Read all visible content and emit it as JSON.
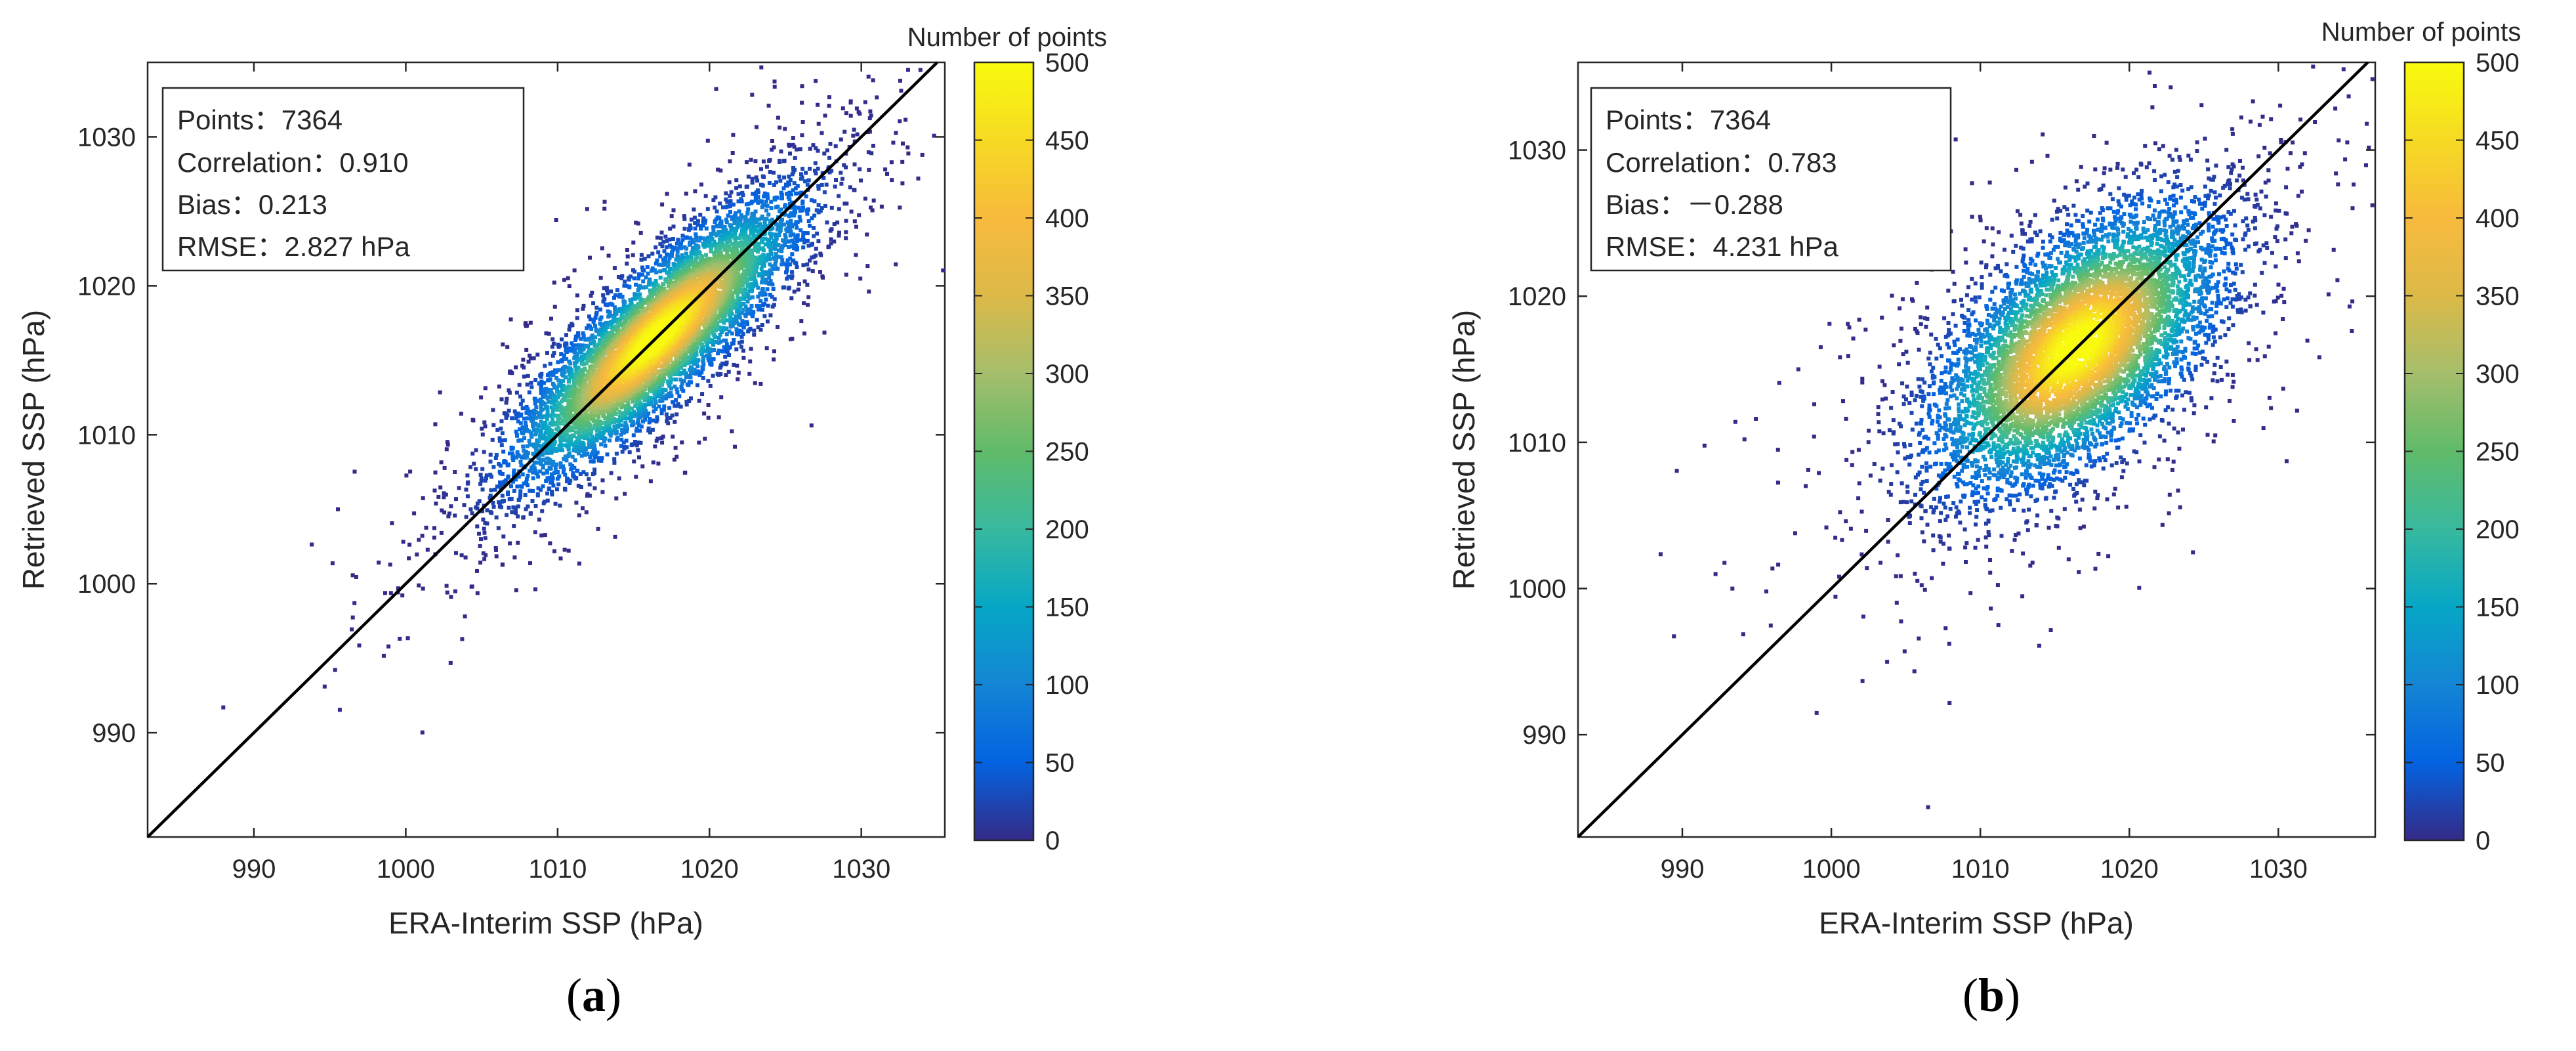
{
  "figure": {
    "caption_a": "a",
    "caption_b": "b"
  },
  "chart_data": [
    {
      "type": "scatter",
      "panel": "a",
      "xlabel": "ERA-Interim SSP (hPa)",
      "ylabel": "Retrieved SSP (hPa)",
      "xlim": [
        983,
        1035.5
      ],
      "ylim": [
        983,
        1035
      ],
      "xticks": [
        990,
        1000,
        1010,
        1020,
        1030
      ],
      "yticks": [
        990,
        1000,
        1010,
        1020,
        1030
      ],
      "reference_line": "1:1",
      "colorbar": {
        "label": "Number of points",
        "range": [
          0,
          500
        ],
        "ticks": [
          0,
          50,
          100,
          150,
          200,
          250,
          300,
          350,
          400,
          450,
          500
        ]
      },
      "stats": {
        "points": "Points：7364",
        "correlation": "Correlation：0.910",
        "bias": "Bias：0.213",
        "rmse": "RMSE：2.827 hPa"
      },
      "density": {
        "center": [
          1016.5,
          1016.5
        ],
        "spread_major": 6.2,
        "spread_minor": 1.75,
        "n": 7364
      }
    },
    {
      "type": "scatter",
      "panel": "b",
      "xlabel": "ERA-Interim SSP (hPa)",
      "ylabel": "Retrieved SSP (hPa)",
      "xlim": [
        983,
        1036.5
      ],
      "ylim": [
        983,
        1036
      ],
      "xticks": [
        990,
        1000,
        1010,
        1020,
        1030
      ],
      "yticks": [
        990,
        1000,
        1010,
        1020,
        1030
      ],
      "reference_line": "1:1",
      "colorbar": {
        "label": "Number of points",
        "range": [
          0,
          500
        ],
        "ticks": [
          0,
          50,
          100,
          150,
          200,
          250,
          300,
          350,
          400,
          450,
          500
        ]
      },
      "stats": {
        "points": "Points：7364",
        "correlation": "Correlation：0.783",
        "bias": "Bias：－0.288",
        "rmse": "RMSE：4.231 hPa"
      },
      "density": {
        "center": [
          1016.5,
          1016.5
        ],
        "spread_major": 5.8,
        "spread_minor": 3.0,
        "n": 7364
      }
    }
  ]
}
